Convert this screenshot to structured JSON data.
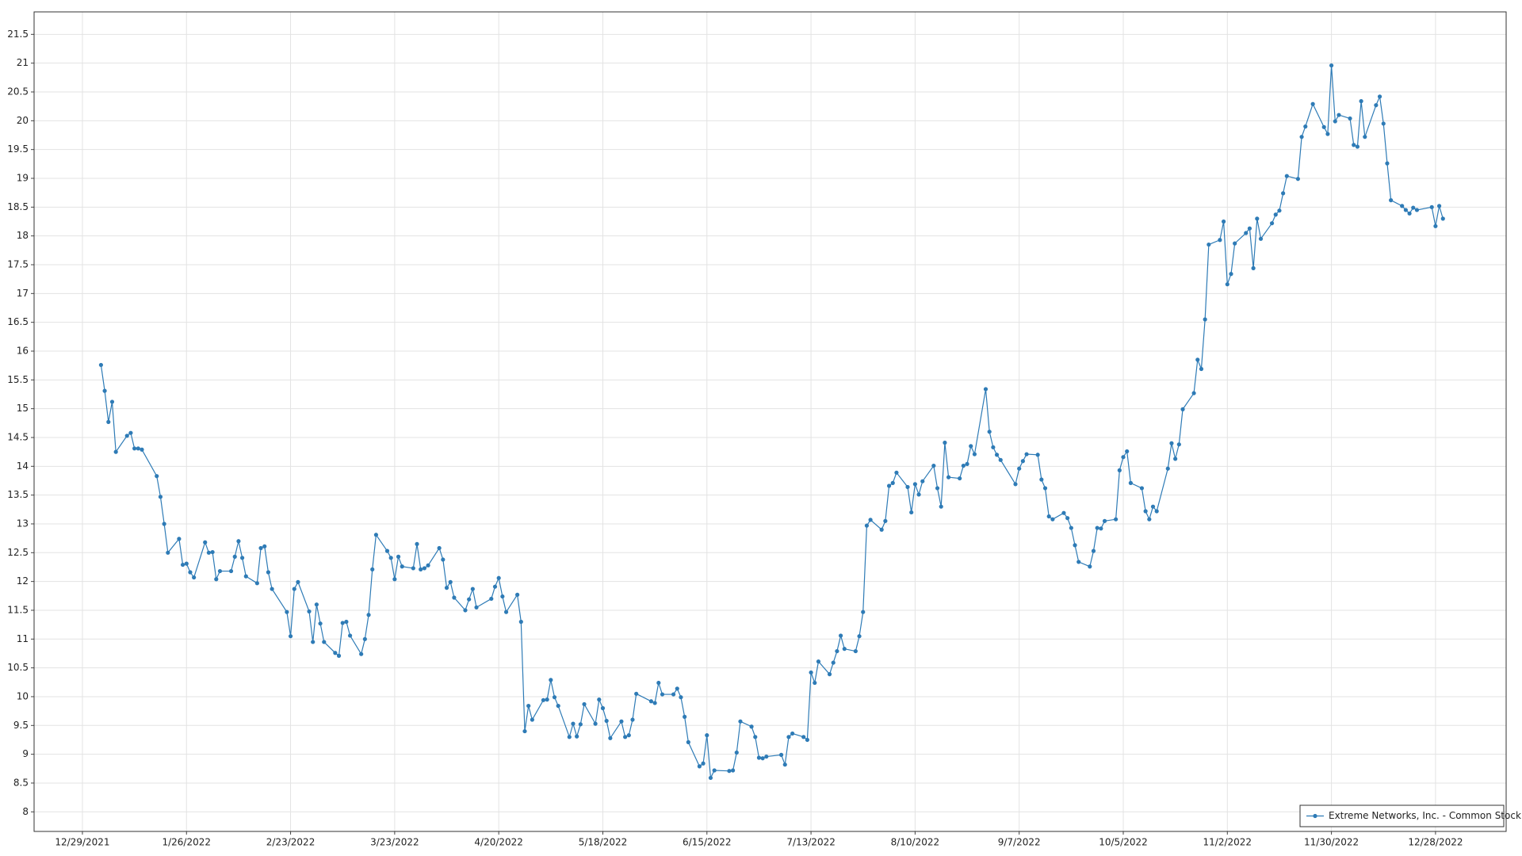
{
  "chart_data": {
    "type": "line",
    "x": [
      "1/3/2022",
      "1/4/2022",
      "1/5/2022",
      "1/6/2022",
      "1/7/2022",
      "1/10/2022",
      "1/11/2022",
      "1/12/2022",
      "1/13/2022",
      "1/14/2022",
      "1/18/2022",
      "1/19/2022",
      "1/20/2022",
      "1/21/2022",
      "1/24/2022",
      "1/25/2022",
      "1/26/2022",
      "1/27/2022",
      "1/28/2022",
      "1/31/2022",
      "2/1/2022",
      "2/2/2022",
      "2/3/2022",
      "2/4/2022",
      "2/7/2022",
      "2/8/2022",
      "2/9/2022",
      "2/10/2022",
      "2/11/2022",
      "2/14/2022",
      "2/15/2022",
      "2/16/2022",
      "2/17/2022",
      "2/18/2022",
      "2/22/2022",
      "2/23/2022",
      "2/24/2022",
      "2/25/2022",
      "2/28/2022",
      "3/1/2022",
      "3/2/2022",
      "3/3/2022",
      "3/4/2022",
      "3/7/2022",
      "3/8/2022",
      "3/9/2022",
      "3/10/2022",
      "3/11/2022",
      "3/14/2022",
      "3/15/2022",
      "3/16/2022",
      "3/17/2022",
      "3/18/2022",
      "3/21/2022",
      "3/22/2022",
      "3/23/2022",
      "3/24/2022",
      "3/25/2022",
      "3/28/2022",
      "3/29/2022",
      "3/30/2022",
      "3/31/2022",
      "4/1/2022",
      "4/4/2022",
      "4/5/2022",
      "4/6/2022",
      "4/7/2022",
      "4/8/2022",
      "4/11/2022",
      "4/12/2022",
      "4/13/2022",
      "4/14/2022",
      "4/18/2022",
      "4/19/2022",
      "4/20/2022",
      "4/21/2022",
      "4/22/2022",
      "4/25/2022",
      "4/26/2022",
      "4/27/2022",
      "4/28/2022",
      "4/29/2022",
      "5/2/2022",
      "5/3/2022",
      "5/4/2022",
      "5/5/2022",
      "5/6/2022",
      "5/9/2022",
      "5/10/2022",
      "5/11/2022",
      "5/12/2022",
      "5/13/2022",
      "5/16/2022",
      "5/17/2022",
      "5/18/2022",
      "5/19/2022",
      "5/20/2022",
      "5/23/2022",
      "5/24/2022",
      "5/25/2022",
      "5/26/2022",
      "5/27/2022",
      "5/31/2022",
      "6/1/2022",
      "6/2/2022",
      "6/3/2022",
      "6/6/2022",
      "6/7/2022",
      "6/8/2022",
      "6/9/2022",
      "6/10/2022",
      "6/13/2022",
      "6/14/2022",
      "6/15/2022",
      "6/16/2022",
      "6/17/2022",
      "6/21/2022",
      "6/22/2022",
      "6/23/2022",
      "6/24/2022",
      "6/27/2022",
      "6/28/2022",
      "6/29/2022",
      "6/30/2022",
      "7/1/2022",
      "7/5/2022",
      "7/6/2022",
      "7/7/2022",
      "7/8/2022",
      "7/11/2022",
      "7/12/2022",
      "7/13/2022",
      "7/14/2022",
      "7/15/2022",
      "7/18/2022",
      "7/19/2022",
      "7/20/2022",
      "7/21/2022",
      "7/22/2022",
      "7/25/2022",
      "7/26/2022",
      "7/27/2022",
      "7/28/2022",
      "7/29/2022",
      "8/1/2022",
      "8/2/2022",
      "8/3/2022",
      "8/4/2022",
      "8/5/2022",
      "8/8/2022",
      "8/9/2022",
      "8/10/2022",
      "8/11/2022",
      "8/12/2022",
      "8/15/2022",
      "8/16/2022",
      "8/17/2022",
      "8/18/2022",
      "8/19/2022",
      "8/22/2022",
      "8/23/2022",
      "8/24/2022",
      "8/25/2022",
      "8/26/2022",
      "8/29/2022",
      "8/30/2022",
      "8/31/2022",
      "9/1/2022",
      "9/2/2022",
      "9/6/2022",
      "9/7/2022",
      "9/8/2022",
      "9/9/2022",
      "9/12/2022",
      "9/13/2022",
      "9/14/2022",
      "9/15/2022",
      "9/16/2022",
      "9/19/2022",
      "9/20/2022",
      "9/21/2022",
      "9/22/2022",
      "9/23/2022",
      "9/26/2022",
      "9/27/2022",
      "9/28/2022",
      "9/29/2022",
      "9/30/2022",
      "10/3/2022",
      "10/4/2022",
      "10/5/2022",
      "10/6/2022",
      "10/7/2022",
      "10/10/2022",
      "10/11/2022",
      "10/12/2022",
      "10/13/2022",
      "10/14/2022",
      "10/17/2022",
      "10/18/2022",
      "10/19/2022",
      "10/20/2022",
      "10/21/2022",
      "10/24/2022",
      "10/25/2022",
      "10/26/2022",
      "10/27/2022",
      "10/28/2022",
      "10/31/2022",
      "11/1/2022",
      "11/2/2022",
      "11/3/2022",
      "11/4/2022",
      "11/7/2022",
      "11/8/2022",
      "11/9/2022",
      "11/10/2022",
      "11/11/2022",
      "11/14/2022",
      "11/15/2022",
      "11/16/2022",
      "11/17/2022",
      "11/18/2022",
      "11/21/2022",
      "11/22/2022",
      "11/23/2022",
      "11/25/2022",
      "11/28/2022",
      "11/29/2022",
      "11/30/2022",
      "12/1/2022",
      "12/2/2022",
      "12/5/2022",
      "12/6/2022",
      "12/7/2022",
      "12/8/2022",
      "12/9/2022",
      "12/12/2022",
      "12/13/2022",
      "12/14/2022",
      "12/15/2022",
      "12/16/2022",
      "12/19/2022",
      "12/20/2022",
      "12/21/2022",
      "12/22/2022",
      "12/23/2022",
      "12/27/2022",
      "12/28/2022",
      "12/29/2022",
      "12/30/2022"
    ],
    "series": [
      {
        "name": "Extreme Networks, Inc. - Common Stock",
        "color": "#2e7bb6",
        "values": [
          15.76,
          15.31,
          14.77,
          15.12,
          14.25,
          14.53,
          14.58,
          14.31,
          14.31,
          14.29,
          13.83,
          13.47,
          13.0,
          12.5,
          12.74,
          12.29,
          12.31,
          12.16,
          12.07,
          12.68,
          12.5,
          12.51,
          12.04,
          12.18,
          12.18,
          12.43,
          12.7,
          12.41,
          12.09,
          11.97,
          12.58,
          12.61,
          12.16,
          11.87,
          11.47,
          11.05,
          11.87,
          11.99,
          11.48,
          10.95,
          11.6,
          11.27,
          10.95,
          10.76,
          10.71,
          11.28,
          11.3,
          11.06,
          10.74,
          11.0,
          11.42,
          12.21,
          12.81,
          12.53,
          12.41,
          12.04,
          12.43,
          12.26,
          12.23,
          12.65,
          12.21,
          12.23,
          12.28,
          12.58,
          12.38,
          11.89,
          11.99,
          11.72,
          11.5,
          11.69,
          11.87,
          11.55,
          11.7,
          11.91,
          12.06,
          11.74,
          11.47,
          11.77,
          11.3,
          9.4,
          9.84,
          9.6,
          9.94,
          9.95,
          10.29,
          9.99,
          9.84,
          9.3,
          9.53,
          9.31,
          9.52,
          9.87,
          9.53,
          9.95,
          9.8,
          9.58,
          9.28,
          9.57,
          9.3,
          9.33,
          9.6,
          10.05,
          9.92,
          9.89,
          10.24,
          10.04,
          10.04,
          10.14,
          9.99,
          9.65,
          9.21,
          8.79,
          8.84,
          9.33,
          8.59,
          8.72,
          8.71,
          8.72,
          9.03,
          9.57,
          9.48,
          9.3,
          8.94,
          8.93,
          8.96,
          8.99,
          8.82,
          9.3,
          9.36,
          9.3,
          9.25,
          10.42,
          10.24,
          10.61,
          10.39,
          10.59,
          10.79,
          11.06,
          10.83,
          10.79,
          11.05,
          11.47,
          12.97,
          13.07,
          12.9,
          13.05,
          13.66,
          13.71,
          13.89,
          13.64,
          13.2,
          13.69,
          13.51,
          13.74,
          14.01,
          13.62,
          13.3,
          14.41,
          13.81,
          13.79,
          14.01,
          14.04,
          14.35,
          14.21,
          15.34,
          14.6,
          14.33,
          14.2,
          14.11,
          13.69,
          13.96,
          14.09,
          14.21,
          14.2,
          13.77,
          13.62,
          13.13,
          13.08,
          13.19,
          13.1,
          12.93,
          12.63,
          12.34,
          12.26,
          12.53,
          12.93,
          12.92,
          13.05,
          13.08,
          13.93,
          14.16,
          14.26,
          13.71,
          13.62,
          13.22,
          13.08,
          13.3,
          13.22,
          13.96,
          14.4,
          14.13,
          14.38,
          14.99,
          15.27,
          15.85,
          15.69,
          16.55,
          17.85,
          17.93,
          18.25,
          17.16,
          17.34,
          17.87,
          18.05,
          18.13,
          17.44,
          18.3,
          17.95,
          18.22,
          18.37,
          18.44,
          18.74,
          19.04,
          18.99,
          19.72,
          19.9,
          20.29,
          19.89,
          19.77,
          20.96,
          19.99,
          20.1,
          20.04,
          19.58,
          19.55,
          20.34,
          19.72,
          20.27,
          20.42,
          19.95,
          19.26,
          18.62,
          18.52,
          18.45,
          18.39,
          18.49,
          18.45,
          18.5,
          18.17,
          18.52,
          18.3
        ]
      }
    ],
    "xlim": [
      "12/16/2021",
      "1/16/2023"
    ],
    "xticks": [
      "12/29/2021",
      "1/26/2022",
      "2/23/2022",
      "3/23/2022",
      "4/20/2022",
      "5/18/2022",
      "6/15/2022",
      "7/13/2022",
      "8/10/2022",
      "9/7/2022",
      "10/5/2022",
      "11/2/2022",
      "11/30/2022",
      "12/28/2022"
    ],
    "ylim": [
      7.66,
      21.89
    ],
    "yticks": [
      8,
      8.5,
      9,
      9.5,
      10,
      10.5,
      11,
      11.5,
      12,
      12.5,
      13,
      13.5,
      14,
      14.5,
      15,
      15.5,
      16,
      16.5,
      17,
      17.5,
      18,
      18.5,
      19,
      19.5,
      20,
      20.5,
      21,
      21.5
    ],
    "grid": true,
    "legend": "lower right"
  }
}
